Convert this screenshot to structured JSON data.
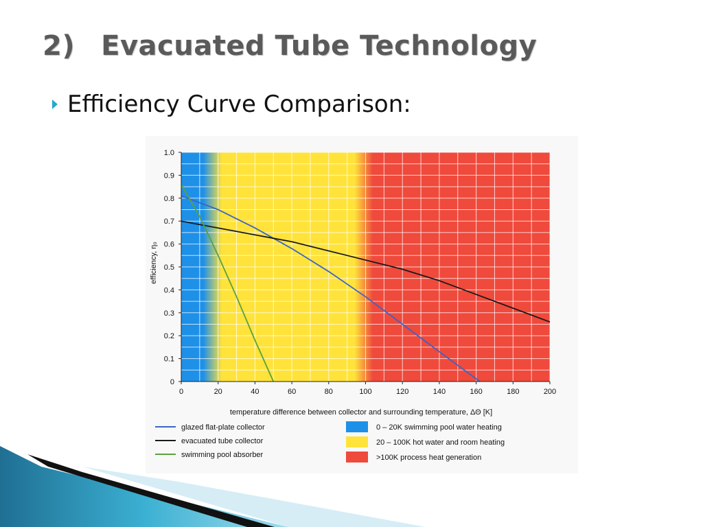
{
  "slide": {
    "number": "2)",
    "title": "Evacuated Tube Technology",
    "bullet": "Efficiency Curve Comparison:"
  },
  "chart_data": {
    "type": "line",
    "title": "",
    "xlabel": "temperature difference between collector and surrounding temperature, ΔΘ [K]",
    "ylabel": "efficiency, η₀",
    "xlim": [
      0,
      200
    ],
    "ylim": [
      0,
      1.0
    ],
    "x_ticks": [
      "0",
      "20",
      "40",
      "60",
      "80",
      "100",
      "120",
      "140",
      "160",
      "180",
      "200"
    ],
    "y_ticks": [
      "0",
      "0.1",
      "0.2",
      "0.3",
      "0.4",
      "0.5",
      "0.6",
      "0.7",
      "0.8",
      "0.9",
      "1.0"
    ],
    "grid": true,
    "bands": [
      {
        "name": "0 – 20K swimming pool water heating",
        "from": 0,
        "to": 20,
        "color": "#1e90e8"
      },
      {
        "name": "20 – 100K hot water and room heating",
        "from": 20,
        "to": 100,
        "color": "#ffe33a"
      },
      {
        "name": ">100K process heat generation",
        "from": 100,
        "to": 200,
        "color": "#ef4a3c"
      }
    ],
    "series": [
      {
        "name": "glazed flat-plate collector",
        "color": "#3a64c8",
        "x": [
          0,
          20,
          40,
          60,
          80,
          100,
          120,
          140,
          162
        ],
        "y": [
          0.81,
          0.75,
          0.67,
          0.58,
          0.48,
          0.37,
          0.25,
          0.13,
          0
        ]
      },
      {
        "name": "evacuated tube collector",
        "color": "#1a1a1a",
        "x": [
          0,
          20,
          40,
          60,
          80,
          100,
          120,
          140,
          160,
          180,
          200
        ],
        "y": [
          0.7,
          0.67,
          0.64,
          0.61,
          0.57,
          0.53,
          0.49,
          0.44,
          0.38,
          0.32,
          0.26
        ]
      },
      {
        "name": "swimming pool absorber",
        "color": "#5aa040",
        "x": [
          0,
          10,
          20,
          30,
          40,
          50
        ],
        "y": [
          0.86,
          0.72,
          0.55,
          0.37,
          0.18,
          0
        ]
      }
    ]
  },
  "colors": {
    "title": "#5a5a5a",
    "bullet": "#2aa7c9",
    "deco": "#1d8fb0"
  }
}
